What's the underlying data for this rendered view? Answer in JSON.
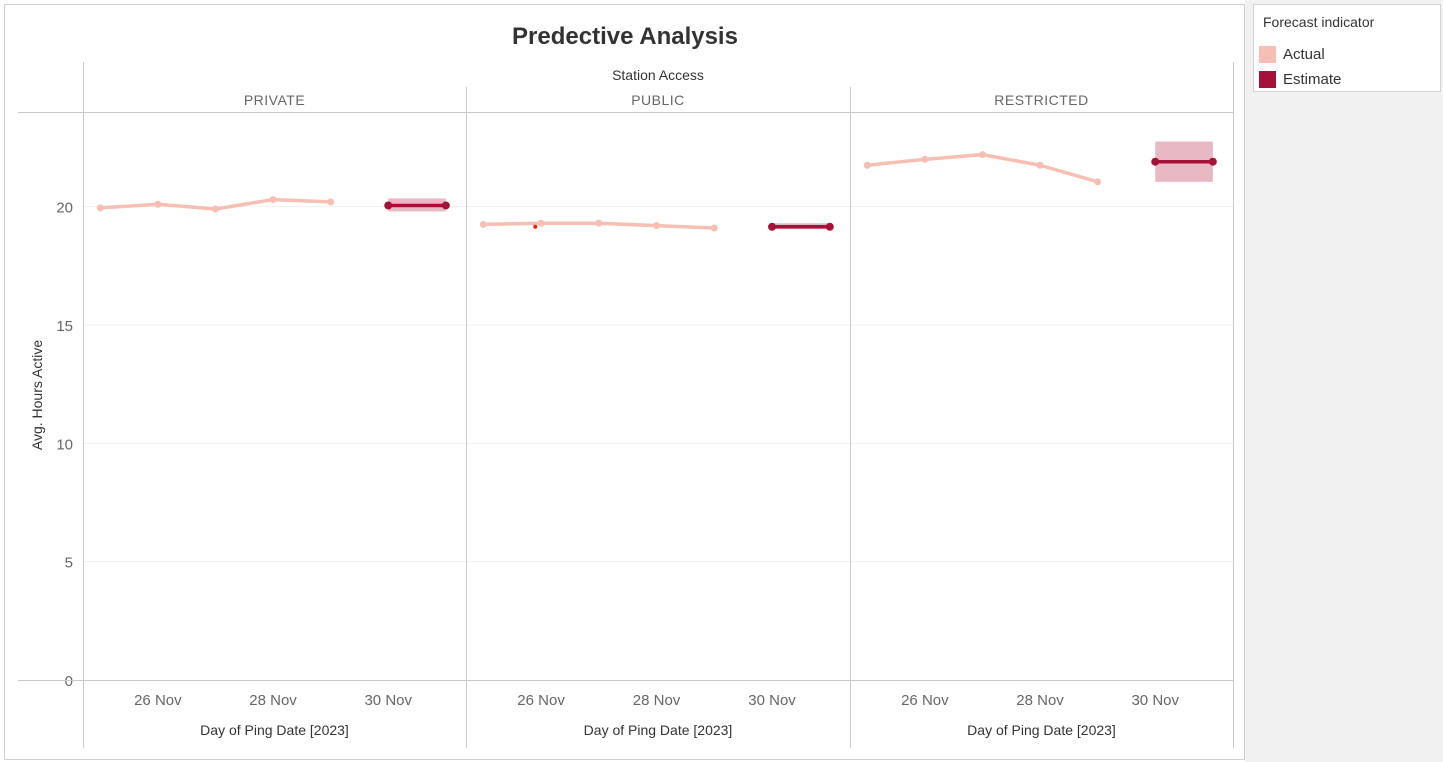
{
  "chart_data": {
    "type": "line",
    "title": "Predective Analysis",
    "column_header": "Station Access",
    "ylabel": "Avg. Hours Active",
    "xlabel": "Day of Ping Date [2023]",
    "ylim": [
      0,
      24
    ],
    "yticks": [
      0,
      5,
      10,
      15,
      20
    ],
    "x_tick_labels": [
      "26 Nov",
      "28 Nov",
      "30 Nov"
    ],
    "x_tick_days": [
      26,
      28,
      30
    ],
    "grid": true,
    "legend": {
      "title": "Forecast indicator",
      "placement": "right",
      "items": [
        {
          "label": "Actual",
          "color": "#f7bfb3"
        },
        {
          "label": "Estimate",
          "color": "#a6113a"
        }
      ]
    },
    "panels": [
      {
        "name": "PRIVATE",
        "actual": {
          "x": [
            25,
            26,
            27,
            28,
            29
          ],
          "y": [
            19.95,
            20.1,
            19.9,
            20.3,
            20.2
          ]
        },
        "estimate": {
          "x": [
            30,
            31
          ],
          "y": [
            20.05,
            20.05
          ],
          "band": [
            19.8,
            20.35
          ]
        }
      },
      {
        "name": "PUBLIC",
        "actual": {
          "x": [
            25,
            26,
            27,
            28,
            29
          ],
          "y": [
            19.25,
            19.3,
            19.3,
            19.2,
            19.1
          ]
        },
        "estimate": {
          "x": [
            30,
            31
          ],
          "y": [
            19.15,
            19.15
          ],
          "band": [
            19.05,
            19.3
          ]
        },
        "highlight": {
          "x": 25.9,
          "y": 19.15,
          "color": "#e8200b"
        }
      },
      {
        "name": "RESTRICTED",
        "actual": {
          "x": [
            25,
            26,
            27,
            28,
            29
          ],
          "y": [
            21.75,
            22.0,
            22.2,
            21.75,
            21.05
          ]
        },
        "estimate": {
          "x": [
            30,
            31
          ],
          "y": [
            21.9,
            21.9
          ],
          "band": [
            21.05,
            22.75
          ]
        }
      }
    ]
  },
  "colors": {
    "actual": "#f7bfb3",
    "estimate": "#a6113a",
    "band": "#e8b9c5",
    "grid": "#f0f0f0",
    "divider": "#c8c8c8"
  }
}
